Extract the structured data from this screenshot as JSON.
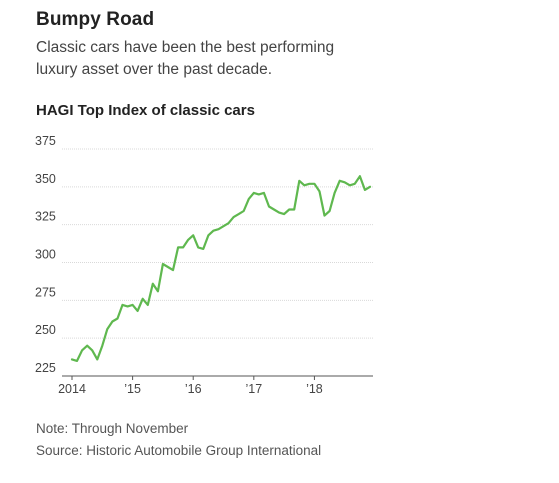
{
  "header": {
    "title": "Bumpy Road",
    "subtitle": "Classic cars have been the best performing luxury asset over the past decade."
  },
  "footer": {
    "note": "Note: Through November",
    "source": "Source: Historic Automobile Group International"
  },
  "chart_data": {
    "type": "line",
    "title": "HAGI Top Index of classic cars",
    "xlabel": "",
    "ylabel": "",
    "ylim": [
      225,
      375
    ],
    "yticks": [
      225,
      250,
      275,
      300,
      325,
      350,
      375
    ],
    "xlim": [
      2014,
      2018.917
    ],
    "xticks": [
      {
        "value": 2014,
        "label": "2014"
      },
      {
        "value": 2015,
        "label": "’15"
      },
      {
        "value": 2016,
        "label": "’16"
      },
      {
        "value": 2017,
        "label": "’17"
      },
      {
        "value": 2018,
        "label": "’18"
      }
    ],
    "grid": true,
    "line_color": "#5fb84f",
    "series": [
      {
        "x": [
          2014.0,
          2014.083,
          2014.167,
          2014.25,
          2014.333,
          2014.417,
          2014.5,
          2014.583,
          2014.667,
          2014.75,
          2014.833,
          2014.917,
          2015.0,
          2015.083,
          2015.167,
          2015.25,
          2015.333,
          2015.417,
          2015.5,
          2015.583,
          2015.667,
          2015.75,
          2015.833,
          2015.917,
          2016.0,
          2016.083,
          2016.167,
          2016.25,
          2016.333,
          2016.417,
          2016.5,
          2016.583,
          2016.667,
          2016.75,
          2016.833,
          2016.917,
          2017.0,
          2017.083,
          2017.167,
          2017.25,
          2017.333,
          2017.417,
          2017.5,
          2017.583,
          2017.667,
          2017.75,
          2017.833,
          2017.917,
          2018.0,
          2018.083,
          2018.167,
          2018.25,
          2018.333,
          2018.417,
          2018.5,
          2018.583,
          2018.667,
          2018.75,
          2018.833,
          2018.917
        ],
        "values": [
          236,
          235,
          242,
          245,
          242,
          236,
          245,
          256,
          261,
          263,
          272,
          271,
          272,
          268,
          276,
          272,
          286,
          281,
          299,
          297,
          295,
          310,
          310,
          315,
          318,
          310,
          309,
          318,
          321,
          322,
          324,
          326,
          330,
          332,
          334,
          342,
          346,
          345,
          346,
          337,
          335,
          333,
          332,
          335,
          335,
          354,
          351,
          352,
          352,
          347,
          331,
          334,
          346,
          354,
          353,
          351,
          352,
          357,
          348,
          350
        ]
      }
    ]
  }
}
